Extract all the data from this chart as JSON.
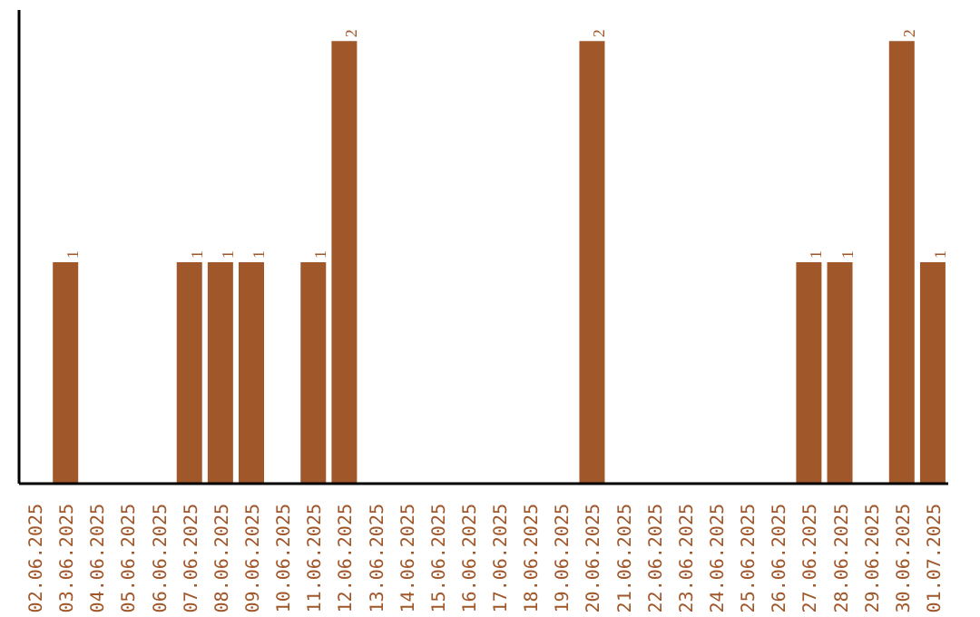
{
  "chart_data": {
    "type": "bar",
    "categories": [
      "02.06.2025",
      "03.06.2025",
      "04.06.2025",
      "05.06.2025",
      "06.06.2025",
      "07.06.2025",
      "08.06.2025",
      "09.06.2025",
      "10.06.2025",
      "11.06.2025",
      "12.06.2025",
      "13.06.2025",
      "14.06.2025",
      "15.06.2025",
      "16.06.2025",
      "17.06.2025",
      "18.06.2025",
      "19.06.2025",
      "20.06.2025",
      "21.06.2025",
      "22.06.2025",
      "23.06.2025",
      "24.06.2025",
      "25.06.2025",
      "26.06.2025",
      "27.06.2025",
      "28.06.2025",
      "29.06.2025",
      "30.06.2025",
      "01.07.2025"
    ],
    "values": [
      0,
      1,
      0,
      0,
      0,
      1,
      1,
      1,
      0,
      1,
      2,
      0,
      0,
      0,
      0,
      0,
      0,
      0,
      2,
      0,
      0,
      0,
      0,
      0,
      0,
      1,
      1,
      0,
      2,
      1
    ],
    "value_labels": [
      null,
      "1",
      null,
      null,
      null,
      "1",
      "1",
      "1",
      null,
      "1",
      "2",
      null,
      null,
      null,
      null,
      null,
      null,
      null,
      "2",
      null,
      null,
      null,
      null,
      null,
      null,
      "1",
      "1",
      null,
      "2",
      "1"
    ],
    "color": "#a0572a",
    "grid": false,
    "tick_labels": "x"
  }
}
